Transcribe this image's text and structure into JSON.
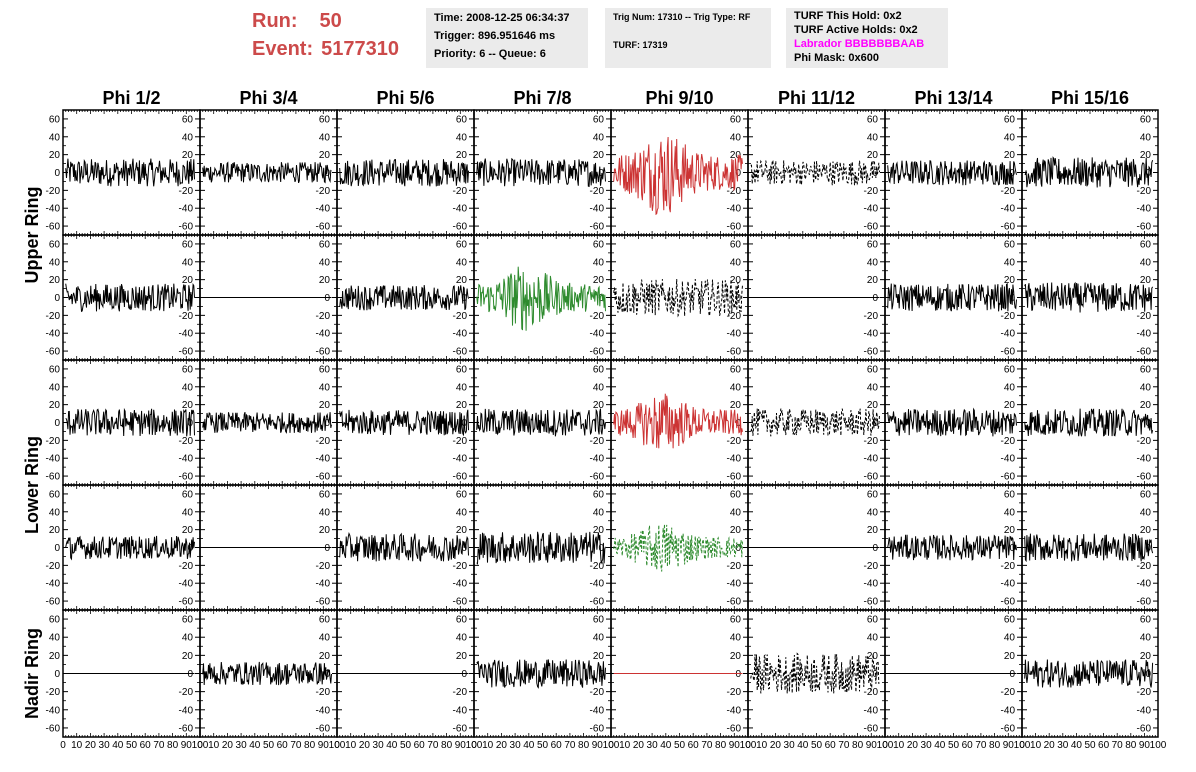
{
  "header": {
    "run_label": "Run:",
    "run_value": "50",
    "event_label": "Event:",
    "event_value": "5177310",
    "time": "Time: 2008-12-25 06:34:37",
    "trigger": "Trigger: 896.951646 ms",
    "priority": "Priority: 6 -- Queue: 6",
    "trig_num": "Trig Num: 17310 -- Trig Type: RF",
    "turf": "TURF: 17319",
    "turf_this_hold": "TURF This Hold: 0x2",
    "turf_active_holds": "TURF Active Holds: 0x2",
    "labrador": "Labrador BBBBBBBAAB",
    "phi_mask": "Phi Mask: 0x600"
  },
  "colors": {
    "run_text": "#cc4a4a",
    "labrador_text": "#ff00ff",
    "info_bg": "#ebebeb",
    "trace_default": "#000000",
    "trace_red": "#cc3333",
    "trace_green": "#2e8b2e"
  },
  "chart_data": {
    "type": "line",
    "columns": [
      "Phi 1/2",
      "Phi 3/4",
      "Phi 5/6",
      "Phi 7/8",
      "Phi 9/10",
      "Phi 11/12",
      "Phi 13/14",
      "Phi 15/16"
    ],
    "ring_labels": [
      "Upper Ring",
      "Lower Ring",
      "Nadir Ring"
    ],
    "rows": 5,
    "ylim": [
      -70,
      70
    ],
    "yticks": [
      -60,
      -40,
      -20,
      0,
      20,
      40,
      60
    ],
    "xlim": [
      0,
      100
    ],
    "xtick_labels": [
      "0",
      "10",
      "20",
      "30",
      "40",
      "50",
      "60",
      "70",
      "80",
      "90",
      "100"
    ],
    "panels": [
      [
        {
          "amp": 12,
          "style": "solid",
          "color": "black"
        },
        {
          "amp": 9,
          "style": "solid",
          "color": "black"
        },
        {
          "amp": 12,
          "style": "solid",
          "color": "black"
        },
        {
          "amp": 12,
          "style": "solid",
          "color": "black"
        },
        {
          "amp": 28,
          "style": "solid",
          "color": "red"
        },
        {
          "amp": 11,
          "style": "dashed",
          "color": "black"
        },
        {
          "amp": 11,
          "style": "solid",
          "color": "black"
        },
        {
          "amp": 13,
          "style": "solid",
          "color": "black"
        }
      ],
      [
        {
          "amp": 12,
          "style": "solid",
          "color": "black"
        },
        {
          "amp": 0,
          "style": "solid",
          "color": "black"
        },
        {
          "amp": 11,
          "style": "solid",
          "color": "black"
        },
        {
          "amp": 22,
          "style": "solid",
          "color": "green"
        },
        {
          "amp": 16,
          "style": "dashed",
          "color": "black"
        },
        {
          "amp": 0,
          "style": "solid",
          "color": "black"
        },
        {
          "amp": 12,
          "style": "solid",
          "color": "black"
        },
        {
          "amp": 13,
          "style": "solid",
          "color": "black"
        }
      ],
      [
        {
          "amp": 12,
          "style": "solid",
          "color": "black"
        },
        {
          "amp": 9,
          "style": "solid",
          "color": "black"
        },
        {
          "amp": 11,
          "style": "solid",
          "color": "black"
        },
        {
          "amp": 12,
          "style": "solid",
          "color": "black"
        },
        {
          "amp": 20,
          "style": "solid",
          "color": "red"
        },
        {
          "amp": 12,
          "style": "dashed",
          "color": "black"
        },
        {
          "amp": 12,
          "style": "solid",
          "color": "black"
        },
        {
          "amp": 12,
          "style": "solid",
          "color": "black"
        }
      ],
      [
        {
          "amp": 10,
          "style": "solid",
          "color": "black"
        },
        {
          "amp": 0,
          "style": "solid",
          "color": "black"
        },
        {
          "amp": 12,
          "style": "solid",
          "color": "black"
        },
        {
          "amp": 14,
          "style": "solid",
          "color": "black"
        },
        {
          "amp": 17,
          "style": "dashed",
          "color": "green"
        },
        {
          "amp": 0,
          "style": "solid",
          "color": "black"
        },
        {
          "amp": 11,
          "style": "solid",
          "color": "black"
        },
        {
          "amp": 12,
          "style": "solid",
          "color": "black"
        }
      ],
      [
        {
          "amp": 0,
          "style": "solid",
          "color": "black"
        },
        {
          "amp": 10,
          "style": "solid",
          "color": "black"
        },
        {
          "amp": 0,
          "style": "solid",
          "color": "black"
        },
        {
          "amp": 12,
          "style": "solid",
          "color": "black"
        },
        {
          "amp": 0,
          "style": "solid",
          "color": "red"
        },
        {
          "amp": 17,
          "style": "dashed",
          "color": "black"
        },
        {
          "amp": 0,
          "style": "solid",
          "color": "black"
        },
        {
          "amp": 12,
          "style": "solid",
          "color": "black"
        }
      ]
    ]
  }
}
